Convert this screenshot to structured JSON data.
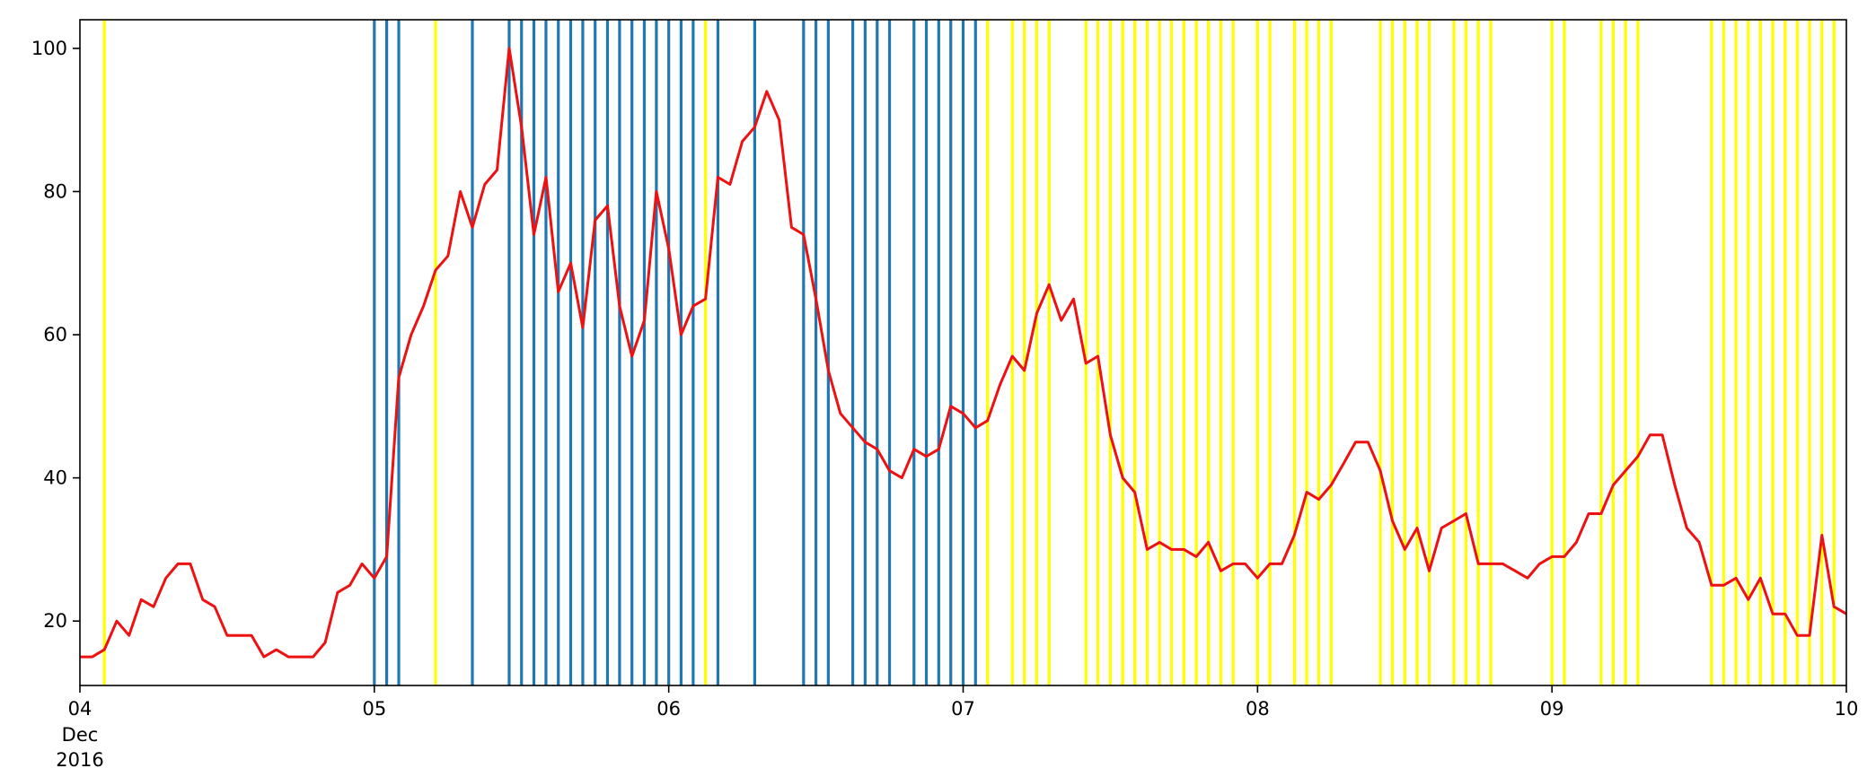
{
  "chart_data": {
    "type": "line",
    "title": "",
    "xlabel": "",
    "ylabel": "",
    "x_range_days": [
      4,
      10
    ],
    "ylim": [
      11,
      104
    ],
    "grid": false,
    "legend": "none",
    "x_ticks": [
      {
        "day": 4,
        "label": "04",
        "sub": [
          "Dec",
          "2016"
        ]
      },
      {
        "day": 5,
        "label": "05"
      },
      {
        "day": 6,
        "label": "06"
      },
      {
        "day": 7,
        "label": "07"
      },
      {
        "day": 8,
        "label": "08"
      },
      {
        "day": 9,
        "label": "09"
      },
      {
        "day": 10,
        "label": "10"
      }
    ],
    "y_ticks": [
      20,
      40,
      60,
      80,
      100
    ],
    "series": [
      {
        "color": "#ee1111",
        "points": [
          [
            4.0,
            15
          ],
          [
            4.042,
            15
          ],
          [
            4.083,
            16
          ],
          [
            4.125,
            20
          ],
          [
            4.167,
            18
          ],
          [
            4.208,
            23
          ],
          [
            4.25,
            22
          ],
          [
            4.292,
            26
          ],
          [
            4.333,
            28
          ],
          [
            4.375,
            28
          ],
          [
            4.417,
            23
          ],
          [
            4.458,
            22
          ],
          [
            4.5,
            18
          ],
          [
            4.542,
            18
          ],
          [
            4.583,
            18
          ],
          [
            4.625,
            15
          ],
          [
            4.667,
            16
          ],
          [
            4.708,
            15
          ],
          [
            4.75,
            15
          ],
          [
            4.792,
            15
          ],
          [
            4.833,
            17
          ],
          [
            4.875,
            24
          ],
          [
            4.917,
            25
          ],
          [
            4.958,
            28
          ],
          [
            5.0,
            26
          ],
          [
            5.042,
            29
          ],
          [
            5.083,
            54
          ],
          [
            5.125,
            60
          ],
          [
            5.167,
            64
          ],
          [
            5.208,
            69
          ],
          [
            5.25,
            71
          ],
          [
            5.292,
            80
          ],
          [
            5.333,
            75
          ],
          [
            5.375,
            81
          ],
          [
            5.417,
            83
          ],
          [
            5.458,
            100
          ],
          [
            5.5,
            89
          ],
          [
            5.542,
            74
          ],
          [
            5.583,
            82
          ],
          [
            5.625,
            66
          ],
          [
            5.667,
            70
          ],
          [
            5.708,
            61
          ],
          [
            5.75,
            76
          ],
          [
            5.792,
            78
          ],
          [
            5.833,
            64
          ],
          [
            5.875,
            57
          ],
          [
            5.917,
            62
          ],
          [
            5.958,
            80
          ],
          [
            6.0,
            72
          ],
          [
            6.042,
            60
          ],
          [
            6.083,
            64
          ],
          [
            6.125,
            65
          ],
          [
            6.167,
            82
          ],
          [
            6.208,
            81
          ],
          [
            6.25,
            87
          ],
          [
            6.292,
            89
          ],
          [
            6.333,
            94
          ],
          [
            6.375,
            90
          ],
          [
            6.417,
            75
          ],
          [
            6.458,
            74
          ],
          [
            6.5,
            65
          ],
          [
            6.542,
            55
          ],
          [
            6.583,
            49
          ],
          [
            6.625,
            47
          ],
          [
            6.667,
            45
          ],
          [
            6.708,
            44
          ],
          [
            6.75,
            41
          ],
          [
            6.792,
            40
          ],
          [
            6.833,
            44
          ],
          [
            6.875,
            43
          ],
          [
            6.917,
            44
          ],
          [
            6.958,
            50
          ],
          [
            7.0,
            49
          ],
          [
            7.042,
            47
          ],
          [
            7.083,
            48
          ],
          [
            7.125,
            53
          ],
          [
            7.167,
            57
          ],
          [
            7.208,
            55
          ],
          [
            7.25,
            63
          ],
          [
            7.292,
            67
          ],
          [
            7.333,
            62
          ],
          [
            7.375,
            65
          ],
          [
            7.417,
            56
          ],
          [
            7.458,
            57
          ],
          [
            7.5,
            46
          ],
          [
            7.542,
            40
          ],
          [
            7.583,
            38
          ],
          [
            7.625,
            30
          ],
          [
            7.667,
            31
          ],
          [
            7.708,
            30
          ],
          [
            7.75,
            30
          ],
          [
            7.792,
            29
          ],
          [
            7.833,
            31
          ],
          [
            7.875,
            27
          ],
          [
            7.917,
            28
          ],
          [
            7.958,
            28
          ],
          [
            8.0,
            26
          ],
          [
            8.042,
            28
          ],
          [
            8.083,
            28
          ],
          [
            8.125,
            32
          ],
          [
            8.167,
            38
          ],
          [
            8.208,
            37
          ],
          [
            8.25,
            39
          ],
          [
            8.292,
            42
          ],
          [
            8.333,
            45
          ],
          [
            8.375,
            45
          ],
          [
            8.417,
            41
          ],
          [
            8.458,
            34
          ],
          [
            8.5,
            30
          ],
          [
            8.542,
            33
          ],
          [
            8.583,
            27
          ],
          [
            8.625,
            33
          ],
          [
            8.667,
            34
          ],
          [
            8.708,
            35
          ],
          [
            8.75,
            28
          ],
          [
            8.792,
            28
          ],
          [
            8.833,
            28
          ],
          [
            8.875,
            27
          ],
          [
            8.917,
            26
          ],
          [
            8.958,
            28
          ],
          [
            9.0,
            29
          ],
          [
            9.042,
            29
          ],
          [
            9.083,
            31
          ],
          [
            9.125,
            35
          ],
          [
            9.167,
            35
          ],
          [
            9.208,
            39
          ],
          [
            9.25,
            41
          ],
          [
            9.292,
            43
          ],
          [
            9.333,
            46
          ],
          [
            9.375,
            46
          ],
          [
            9.417,
            39
          ],
          [
            9.458,
            33
          ],
          [
            9.5,
            31
          ],
          [
            9.542,
            25
          ],
          [
            9.583,
            25
          ],
          [
            9.625,
            26
          ],
          [
            9.667,
            23
          ],
          [
            9.708,
            26
          ],
          [
            9.75,
            21
          ],
          [
            9.792,
            21
          ],
          [
            9.833,
            18
          ],
          [
            9.875,
            18
          ],
          [
            9.917,
            32
          ],
          [
            9.958,
            22
          ],
          [
            10.0,
            21
          ]
        ]
      }
    ],
    "event_lines": [
      {
        "color": "#1f77b4",
        "x": [
          5.0,
          5.042,
          5.083,
          5.333,
          5.458,
          5.5,
          5.542,
          5.583,
          5.625,
          5.667,
          5.708,
          5.75,
          5.792,
          5.833,
          5.875,
          5.917,
          5.958,
          6.0,
          6.042,
          6.083,
          6.167,
          6.292,
          6.458,
          6.5,
          6.542,
          6.625,
          6.667,
          6.708,
          6.75,
          6.833,
          6.875,
          6.917,
          6.958,
          7.0,
          7.042
        ]
      },
      {
        "color": "#ffff00",
        "x": [
          4.083,
          5.208,
          6.125,
          7.083,
          7.167,
          7.208,
          7.25,
          7.292,
          7.417,
          7.458,
          7.5,
          7.542,
          7.583,
          7.625,
          7.667,
          7.708,
          7.75,
          7.792,
          7.833,
          7.875,
          7.917,
          8.0,
          8.042,
          8.125,
          8.167,
          8.208,
          8.25,
          8.417,
          8.458,
          8.5,
          8.542,
          8.583,
          8.667,
          8.708,
          8.75,
          8.792,
          9.0,
          9.042,
          9.167,
          9.208,
          9.25,
          9.292,
          9.542,
          9.583,
          9.625,
          9.667,
          9.708,
          9.75,
          9.792,
          9.833,
          9.875,
          9.917,
          9.958
        ]
      }
    ]
  }
}
